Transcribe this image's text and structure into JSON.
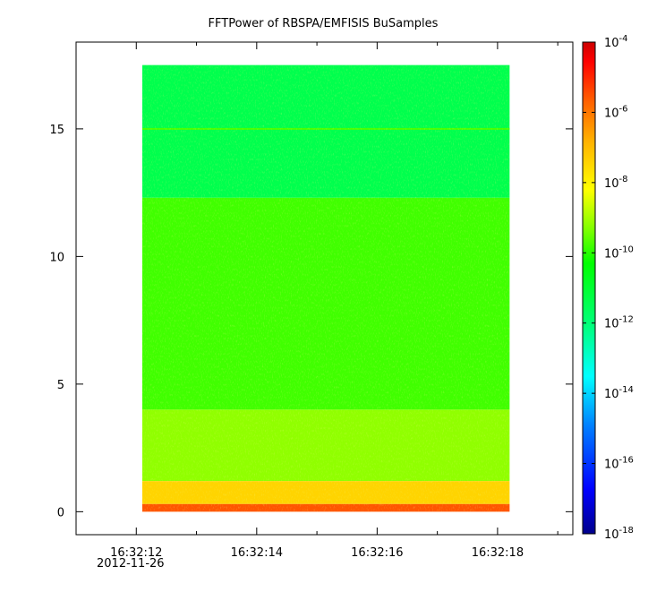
{
  "chart_data": {
    "type": "heatmap",
    "title": "FFTPower of RBSPA/EMFISIS  BuSamples",
    "xlabel": "",
    "ylabel": "",
    "x_ticks": [
      "16:32:12",
      "16:32:14",
      "16:32:16",
      "16:32:18"
    ],
    "x_tick_values_sec": [
      12,
      14,
      16,
      18
    ],
    "x_date_label": "2012-11-26",
    "xlim_sec": [
      11.0,
      19.25
    ],
    "x_data_range_sec": [
      12.1,
      18.2
    ],
    "y_ticks": [
      "0",
      "5",
      "10",
      "15"
    ],
    "y_tick_values": [
      0,
      5,
      10,
      15
    ],
    "ylim": [
      -0.9,
      18.4
    ],
    "y_data_range": [
      0,
      17.5
    ],
    "colorbar": {
      "scale": "log",
      "range": [
        1e-18,
        0.0001
      ],
      "tick_bases": [
        "10",
        "10",
        "10",
        "10",
        "10",
        "10",
        "10",
        "10"
      ],
      "tick_exponents": [
        "-4",
        "-6",
        "-8",
        "-10",
        "-12",
        "-14",
        "-16",
        "-18"
      ],
      "tick_values": [
        -4,
        -6,
        -8,
        -10,
        -12,
        -14,
        -16,
        -18
      ],
      "colors": [
        "#00008b",
        "#0000ff",
        "#0080ff",
        "#00ffff",
        "#00ff80",
        "#00ff00",
        "#80ff00",
        "#ffff00",
        "#ffb000",
        "#ff6000",
        "#ff0000",
        "#cc0000"
      ]
    },
    "regions": [
      {
        "y_from": 12.3,
        "y_to": 17.5,
        "log10_power": -12.4
      },
      {
        "y_from": 4.0,
        "y_to": 12.3,
        "log10_power": -11.0
      },
      {
        "y_from": 1.2,
        "y_to": 4.0,
        "log10_power": -10.2
      },
      {
        "y_from": 0.3,
        "y_to": 1.2,
        "log10_power": -8.4
      },
      {
        "y_from": 0.0,
        "y_to": 0.3,
        "log10_power": -6.4
      }
    ],
    "lines": [
      {
        "y": 15.0,
        "log10_power": -10.9
      }
    ]
  }
}
